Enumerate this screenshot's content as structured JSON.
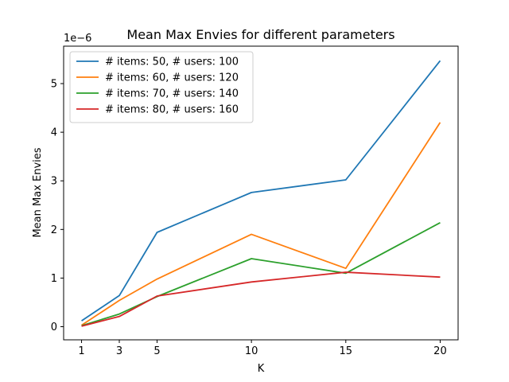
{
  "chart_data": {
    "type": "line",
    "title": "Mean Max Envies for different parameters",
    "xlabel": "K",
    "ylabel": "Mean Max Envies",
    "y_offset_label": "1e−6",
    "x": [
      1,
      3,
      5,
      10,
      15,
      20
    ],
    "x_ticks": [
      1,
      3,
      5,
      10,
      15,
      20
    ],
    "y_ticks": [
      0,
      1,
      2,
      3,
      4,
      5
    ],
    "xlim": [
      0.05,
      20.95
    ],
    "ylim": [
      -0.27,
      5.77
    ],
    "grid": false,
    "legend_position": "top-left",
    "series": [
      {
        "name": "# items: 50, # users: 100",
        "color": "#1f77b4",
        "values": [
          0.12,
          0.64,
          1.94,
          2.76,
          3.02,
          5.47
        ]
      },
      {
        "name": "# items: 60, # users: 120",
        "color": "#ff7f0e",
        "values": [
          0.03,
          0.54,
          0.98,
          1.9,
          1.2,
          4.2
        ]
      },
      {
        "name": "# items: 70, # users: 140",
        "color": "#2ca02c",
        "values": [
          0.02,
          0.26,
          0.62,
          1.4,
          1.1,
          2.14
        ]
      },
      {
        "name": "# items: 80, # users: 160",
        "color": "#d62728",
        "values": [
          0.01,
          0.21,
          0.63,
          0.92,
          1.12,
          1.02
        ]
      }
    ]
  }
}
